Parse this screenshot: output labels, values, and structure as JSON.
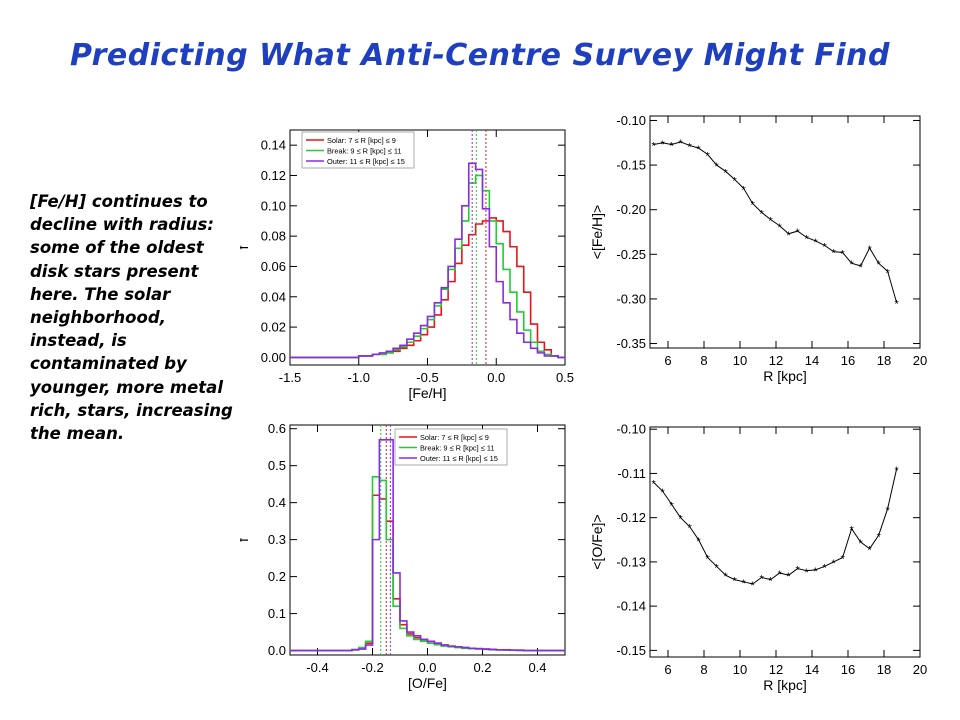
{
  "title": "Predicting What Anti-Centre Survey Might Find",
  "side_text": "[Fe/H] continues to decline with radius: some of the oldest disk stars present here.  The solar neighborhood, instead, is contaminated by younger, more metal rich, stars, increasing the mean.",
  "chart_data": [
    {
      "type": "line",
      "subtype": "step-histogram",
      "xlabel": "[Fe/H]",
      "ylabel": "f",
      "xlim": [
        -1.5,
        0.5
      ],
      "ylim": [
        -0.005,
        0.15
      ],
      "xticks": [
        -1.5,
        -1.0,
        -0.5,
        0.0,
        0.5
      ],
      "xtick_labels": [
        "-1.5",
        "-1.0",
        "-0.5",
        "0.0",
        "0.5"
      ],
      "yticks": [
        0.0,
        0.02,
        0.04,
        0.06,
        0.08,
        0.1,
        0.12,
        0.14
      ],
      "ytick_labels": [
        "0.00",
        "0.02",
        "0.04",
        "0.06",
        "0.08",
        "0.10",
        "0.12",
        "0.14"
      ],
      "legend_position": "top-left",
      "bin_edges": [
        -1.5,
        -1.45,
        -1.4,
        -1.35,
        -1.3,
        -1.25,
        -1.2,
        -1.15,
        -1.1,
        -1.05,
        -1.0,
        -0.95,
        -0.9,
        -0.85,
        -0.8,
        -0.75,
        -0.7,
        -0.65,
        -0.6,
        -0.55,
        -0.5,
        -0.45,
        -0.4,
        -0.35,
        -0.3,
        -0.25,
        -0.2,
        -0.15,
        -0.1,
        -0.05,
        0.0,
        0.05,
        0.1,
        0.15,
        0.2,
        0.25,
        0.3,
        0.35,
        0.4,
        0.45,
        0.5
      ],
      "series": [
        {
          "name": "Solar: 7 ≤ R [kpc] ≤ 9",
          "color": "#e8141a",
          "mean": -0.075,
          "values": [
            0,
            0,
            0,
            0,
            0,
            0,
            0,
            0,
            0,
            0,
            0.001,
            0.001,
            0.002,
            0.002,
            0.003,
            0.004,
            0.006,
            0.008,
            0.011,
            0.015,
            0.02,
            0.028,
            0.038,
            0.05,
            0.062,
            0.074,
            0.081,
            0.088,
            0.09,
            0.092,
            0.09,
            0.083,
            0.073,
            0.06,
            0.043,
            0.022,
            0.01,
            0.005,
            0.001,
            0
          ]
        },
        {
          "name": "Break: 9 ≤ R [kpc] ≤ 11",
          "color": "#22cc33",
          "mean": -0.145,
          "values": [
            0,
            0,
            0,
            0,
            0,
            0,
            0,
            0,
            0,
            0,
            0.001,
            0.001,
            0.002,
            0.002,
            0.003,
            0.005,
            0.007,
            0.01,
            0.014,
            0.019,
            0.025,
            0.034,
            0.045,
            0.058,
            0.072,
            0.09,
            0.115,
            0.12,
            0.11,
            0.09,
            0.075,
            0.058,
            0.043,
            0.03,
            0.018,
            0.01,
            0.004,
            0.002,
            0.001,
            0
          ]
        },
        {
          "name": "Outer: 11 ≤ R [kpc] ≤ 15",
          "color": "#8a2be2",
          "mean": -0.175,
          "values": [
            0,
            0,
            0,
            0,
            0,
            0,
            0,
            0,
            0,
            0,
            0.001,
            0.001,
            0.002,
            0.003,
            0.004,
            0.006,
            0.008,
            0.012,
            0.016,
            0.021,
            0.027,
            0.036,
            0.046,
            0.06,
            0.078,
            0.1,
            0.128,
            0.124,
            0.098,
            0.073,
            0.05,
            0.036,
            0.025,
            0.016,
            0.01,
            0.006,
            0.003,
            0.001,
            0.001,
            0
          ]
        }
      ]
    },
    {
      "type": "line",
      "xlabel": "R  [kpc]",
      "ylabel": "<[Fe/H]>",
      "xlim": [
        5,
        20
      ],
      "ylim": [
        -0.355,
        -0.095
      ],
      "xticks": [
        6,
        8,
        10,
        12,
        14,
        16,
        18,
        20
      ],
      "xtick_labels": [
        "6",
        "8",
        "10",
        "12",
        "14",
        "16",
        "18",
        "20"
      ],
      "yticks": [
        -0.35,
        -0.3,
        -0.25,
        -0.2,
        -0.15,
        -0.1
      ],
      "ytick_labels": [
        "-0.35",
        "-0.30",
        "-0.25",
        "-0.20",
        "-0.15",
        "-0.10"
      ],
      "marker": "asterisk",
      "series": [
        {
          "x": [
            5.2,
            5.7,
            6.2,
            6.7,
            7.2,
            7.7,
            8.2,
            8.7,
            9.2,
            9.7,
            10.2,
            10.7,
            11.2,
            11.7,
            12.2,
            12.7,
            13.2,
            13.7,
            14.2,
            14.7,
            15.2,
            15.7,
            16.2,
            16.7,
            17.2,
            17.7,
            18.2,
            18.7
          ],
          "y": [
            -0.127,
            -0.125,
            -0.127,
            -0.124,
            -0.128,
            -0.131,
            -0.138,
            -0.15,
            -0.157,
            -0.166,
            -0.176,
            -0.193,
            -0.203,
            -0.211,
            -0.218,
            -0.227,
            -0.224,
            -0.231,
            -0.235,
            -0.24,
            -0.247,
            -0.248,
            -0.26,
            -0.263,
            -0.243,
            -0.26,
            -0.269,
            -0.304
          ]
        }
      ]
    },
    {
      "type": "line",
      "subtype": "step-histogram",
      "xlabel": "[O/Fe]",
      "ylabel": "f",
      "xlim": [
        -0.5,
        0.5
      ],
      "ylim": [
        -0.012,
        0.61
      ],
      "xticks": [
        -0.4,
        -0.2,
        0.0,
        0.2,
        0.4
      ],
      "xtick_labels": [
        "-0.4",
        "-0.2",
        "0.0",
        "0.2",
        "0.4"
      ],
      "yticks": [
        0.0,
        0.1,
        0.2,
        0.3,
        0.4,
        0.5,
        0.6
      ],
      "ytick_labels": [
        "0.0",
        "0.1",
        "0.2",
        "0.3",
        "0.4",
        "0.5",
        "0.6"
      ],
      "legend_position": "top-right",
      "bin_edges": [
        -0.5,
        -0.475,
        -0.45,
        -0.425,
        -0.4,
        -0.375,
        -0.35,
        -0.325,
        -0.3,
        -0.275,
        -0.25,
        -0.225,
        -0.2,
        -0.175,
        -0.15,
        -0.125,
        -0.1,
        -0.075,
        -0.05,
        -0.025,
        0.0,
        0.025,
        0.05,
        0.075,
        0.1,
        0.125,
        0.15,
        0.175,
        0.2,
        0.225,
        0.25,
        0.275,
        0.3,
        0.325,
        0.35,
        0.375,
        0.4,
        0.425,
        0.45,
        0.475,
        0.5
      ],
      "series": [
        {
          "name": "Solar: 7 ≤ R [kpc] ≤ 9",
          "color": "#e8141a",
          "mean": -0.15,
          "values": [
            0,
            0,
            0,
            0,
            0,
            0,
            0,
            0,
            0,
            0.002,
            0.005,
            0.02,
            0.42,
            0.41,
            0.35,
            0.14,
            0.07,
            0.045,
            0.035,
            0.03,
            0.025,
            0.02,
            0.015,
            0.012,
            0.01,
            0.008,
            0.006,
            0.005,
            0.004,
            0.003,
            0.002,
            0.002,
            0.001,
            0.001,
            0,
            0,
            0,
            0,
            0,
            0
          ]
        },
        {
          "name": "Break: 9 ≤ R [kpc] ≤ 11",
          "color": "#22cc33",
          "mean": -0.17,
          "values": [
            0,
            0,
            0,
            0,
            0,
            0,
            0,
            0,
            0,
            0.003,
            0.008,
            0.025,
            0.47,
            0.46,
            0.3,
            0.12,
            0.06,
            0.04,
            0.03,
            0.025,
            0.02,
            0.016,
            0.012,
            0.01,
            0.008,
            0.006,
            0.005,
            0.004,
            0.003,
            0.002,
            0.002,
            0.001,
            0.001,
            0,
            0,
            0,
            0,
            0,
            0,
            0
          ]
        },
        {
          "name": "Outer: 11 ≤ R [kpc] ≤ 15",
          "color": "#8a2be2",
          "mean": -0.135,
          "values": [
            0,
            0,
            0,
            0,
            0,
            0,
            0,
            0,
            0,
            0.002,
            0.004,
            0.015,
            0.3,
            0.57,
            0.57,
            0.21,
            0.08,
            0.05,
            0.04,
            0.03,
            0.025,
            0.02,
            0.015,
            0.012,
            0.01,
            0.008,
            0.006,
            0.005,
            0.004,
            0.003,
            0.002,
            0.002,
            0.001,
            0.001,
            0,
            0,
            0,
            0,
            0,
            0
          ]
        }
      ]
    },
    {
      "type": "line",
      "xlabel": "R  [kpc]",
      "ylabel": "<[O/Fe]>",
      "xlim": [
        5,
        20
      ],
      "ylim": [
        -0.1515,
        -0.0995
      ],
      "xticks": [
        6,
        8,
        10,
        12,
        14,
        16,
        18,
        20
      ],
      "xtick_labels": [
        "6",
        "8",
        "10",
        "12",
        "14",
        "16",
        "18",
        "20"
      ],
      "yticks": [
        -0.15,
        -0.14,
        -0.13,
        -0.12,
        -0.11,
        -0.1
      ],
      "ytick_labels": [
        "-0.15",
        "-0.14",
        "-0.13",
        "-0.12",
        "-0.11",
        "-0.10"
      ],
      "marker": "asterisk",
      "series": [
        {
          "x": [
            5.2,
            5.7,
            6.2,
            6.7,
            7.2,
            7.7,
            8.2,
            8.7,
            9.2,
            9.7,
            10.2,
            10.7,
            11.2,
            11.7,
            12.2,
            12.7,
            13.2,
            13.7,
            14.2,
            14.7,
            15.2,
            15.7,
            16.2,
            16.7,
            17.2,
            17.7,
            18.2,
            18.7
          ],
          "y": [
            -0.112,
            -0.114,
            -0.117,
            -0.12,
            -0.122,
            -0.125,
            -0.129,
            -0.131,
            -0.133,
            -0.134,
            -0.1345,
            -0.135,
            -0.1335,
            -0.134,
            -0.1325,
            -0.133,
            -0.1315,
            -0.132,
            -0.1318,
            -0.131,
            -0.13,
            -0.129,
            -0.1225,
            -0.1255,
            -0.127,
            -0.124,
            -0.118,
            -0.109
          ]
        }
      ]
    }
  ]
}
